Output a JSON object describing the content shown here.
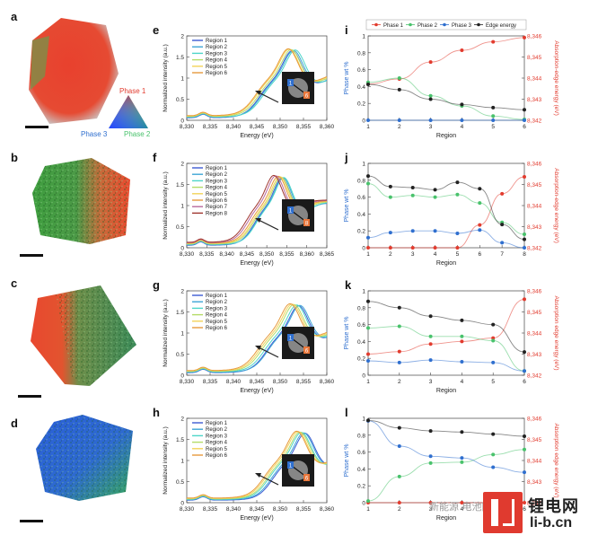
{
  "colors": {
    "phase1": "#e23b2e",
    "phase2": "#49c26c",
    "phase3": "#2f6fcf",
    "edge": "#222222",
    "spectra": [
      "#3d5bd3",
      "#3ea6d6",
      "#4ed6c9",
      "#b5dc68",
      "#f3d35a",
      "#e79a3d",
      "#b86a9d",
      "#a0362f"
    ]
  },
  "panels": {
    "a": {
      "letter": "a",
      "legend": {
        "phase1": "Phase 1",
        "phase2": "Phase 2",
        "phase3": "Phase 3"
      }
    },
    "b": {
      "letter": "b"
    },
    "c": {
      "letter": "c"
    },
    "d": {
      "letter": "d"
    }
  },
  "chart_data": [
    {
      "panel": "e",
      "type": "line",
      "xlabel": "Energy (eV)",
      "ylabel": "Normalized intensity (a.u.)",
      "xlim": [
        8330,
        8360
      ],
      "ylim": [
        0,
        2
      ],
      "xticks": [
        "8,330",
        "8,335",
        "8,340",
        "8,345",
        "8,350",
        "8,355",
        "8,360"
      ],
      "yticks": [
        "0",
        "0.5",
        "1",
        "1.5",
        "2"
      ],
      "legend": [
        "Region 1",
        "Region 2",
        "Region 3",
        "Region 4",
        "Region 5",
        "Region 6"
      ],
      "peaks": [
        8352.6,
        8352.9,
        8353.3,
        8352.4,
        8352.0,
        8351.8
      ],
      "inset_labels": [
        "1",
        "6"
      ],
      "legend_position": "top-left"
    },
    {
      "panel": "f",
      "type": "line",
      "xlabel": "Energy (eV)",
      "ylabel": "Normalized intensity (a.u.)",
      "xlim": [
        8330,
        8365
      ],
      "ylim": [
        0,
        2
      ],
      "xticks": [
        "8,330",
        "8,335",
        "8,340",
        "8,345",
        "8,350",
        "8,355",
        "8,360",
        "8,365"
      ],
      "yticks": [
        "0",
        "0.5",
        "1",
        "1.5",
        "2"
      ],
      "legend": [
        "Region 1",
        "Region 2",
        "Region 3",
        "Region 4",
        "Region 5",
        "Region 6",
        "Region 7",
        "Region 8"
      ],
      "peaks": [
        8353.8,
        8354.1,
        8354.3,
        8353.6,
        8353.3,
        8352.9,
        8352.3,
        8351.8
      ],
      "inset_labels": [
        "1",
        "8"
      ],
      "legend_position": "top-left"
    },
    {
      "panel": "g",
      "type": "line",
      "xlabel": "Energy (eV)",
      "ylabel": "Normalized intensity (a.u.)",
      "xlim": [
        8330,
        8360
      ],
      "ylim": [
        0,
        2
      ],
      "xticks": [
        "8,330",
        "8,335",
        "8,340",
        "8,345",
        "8,350",
        "8,355",
        "8,360"
      ],
      "yticks": [
        "0",
        "0.5",
        "1",
        "1.5",
        "2"
      ],
      "legend": [
        "Region 1",
        "Region 2",
        "Region 3",
        "Region 4",
        "Region 5",
        "Region 6"
      ],
      "peaks": [
        8354.0,
        8354.3,
        8353.6,
        8353.0,
        8352.6,
        8352.2
      ],
      "inset_labels": [
        "1",
        "6"
      ],
      "legend_position": "top-left"
    },
    {
      "panel": "h",
      "type": "line",
      "xlabel": "Energy (eV)",
      "ylabel": "Normalized intensity (a.u.)",
      "xlim": [
        8330,
        8360
      ],
      "ylim": [
        0,
        2
      ],
      "xticks": [
        "8,330",
        "8,335",
        "8,340",
        "8,345",
        "8,350",
        "8,355",
        "8,360"
      ],
      "yticks": [
        "0",
        "0.5",
        "1",
        "1.5",
        "2"
      ],
      "legend": [
        "Region 1",
        "Region 2",
        "Region 3",
        "Region 4",
        "Region 5",
        "Region 6"
      ],
      "peaks": [
        8355.4,
        8355.1,
        8354.6,
        8354.3,
        8353.9,
        8353.6
      ],
      "inset_labels": [
        "1",
        "6"
      ],
      "legend_position": "top-left"
    },
    {
      "panel": "i",
      "type": "line",
      "xlabel": "Region",
      "ylabel": "Phase wt %",
      "y2label": "Absorption-edge energy (eV)",
      "x": [
        1,
        2,
        3,
        4,
        5,
        6
      ],
      "ylim": [
        0,
        1
      ],
      "y2lim": [
        8342,
        8346
      ],
      "yticks": [
        "0",
        "0.2",
        "0.4",
        "0.6",
        "0.8",
        "1"
      ],
      "y2ticks": [
        "8,342",
        "8,343",
        "8,344",
        "8,345",
        "8,346"
      ],
      "legend": [
        "Phase 1",
        "Phase 2",
        "Phase 3",
        "Edge energy"
      ],
      "series": [
        {
          "name": "Phase 1",
          "axis": "left",
          "values": [
            0.43,
            0.49,
            0.69,
            0.83,
            0.93,
            0.98
          ]
        },
        {
          "name": "Phase 2",
          "axis": "left",
          "values": [
            0.45,
            0.5,
            0.29,
            0.17,
            0.05,
            0.01
          ]
        },
        {
          "name": "Phase 3",
          "axis": "left",
          "values": [
            0.0,
            0.0,
            0.0,
            0.0,
            0.0,
            0.0
          ]
        },
        {
          "name": "Edge energy",
          "axis": "right",
          "values": [
            8343.7,
            8343.45,
            8343.0,
            8342.75,
            8342.6,
            8342.5
          ]
        }
      ]
    },
    {
      "panel": "j",
      "type": "line",
      "xlabel": "Region",
      "ylabel": "Phase wt %",
      "y2label": "Absorption-edge energy (eV)",
      "x": [
        1,
        2,
        3,
        4,
        5,
        6,
        7,
        8
      ],
      "ylim": [
        0,
        1
      ],
      "y2lim": [
        8342,
        8346
      ],
      "yticks": [
        "0",
        "0.2",
        "0.4",
        "0.6",
        "0.8",
        "1"
      ],
      "y2ticks": [
        "8,342",
        "8,343",
        "8,344",
        "8,345",
        "8,346"
      ],
      "series": [
        {
          "name": "Phase 1",
          "axis": "left",
          "values": [
            0.0,
            0.0,
            0.0,
            0.0,
            0.0,
            0.27,
            0.64,
            0.84
          ]
        },
        {
          "name": "Phase 2",
          "axis": "left",
          "values": [
            0.76,
            0.6,
            0.62,
            0.6,
            0.63,
            0.53,
            0.3,
            0.16
          ]
        },
        {
          "name": "Phase 3",
          "axis": "left",
          "values": [
            0.12,
            0.18,
            0.2,
            0.2,
            0.17,
            0.21,
            0.06,
            0.0
          ]
        },
        {
          "name": "Edge energy",
          "axis": "right",
          "values": [
            8345.4,
            8344.9,
            8344.85,
            8344.75,
            8345.1,
            8344.8,
            8343.1,
            8342.4
          ]
        }
      ]
    },
    {
      "panel": "k",
      "type": "line",
      "xlabel": "Region",
      "ylabel": "Phase wt %",
      "y2label": "Absorption edge energy (eV)",
      "x": [
        1,
        2,
        3,
        4,
        5,
        6
      ],
      "ylim": [
        0,
        1
      ],
      "y2lim": [
        8342,
        8346
      ],
      "yticks": [
        "0",
        "0.2",
        "0.4",
        "0.6",
        "0.8",
        "1"
      ],
      "y2ticks": [
        "8,342",
        "8,343",
        "8,344",
        "8,345",
        "8,346"
      ],
      "series": [
        {
          "name": "Phase 1",
          "axis": "left",
          "values": [
            0.25,
            0.28,
            0.37,
            0.4,
            0.44,
            0.9
          ]
        },
        {
          "name": "Phase 2",
          "axis": "left",
          "values": [
            0.56,
            0.58,
            0.46,
            0.46,
            0.41,
            0.05
          ]
        },
        {
          "name": "Phase 3",
          "axis": "left",
          "values": [
            0.17,
            0.15,
            0.18,
            0.16,
            0.15,
            0.05
          ]
        },
        {
          "name": "Edge energy",
          "axis": "right",
          "values": [
            8345.5,
            8345.2,
            8344.8,
            8344.6,
            8344.4,
            8343.1
          ]
        }
      ]
    },
    {
      "panel": "l",
      "type": "line",
      "xlabel": "Region",
      "ylabel": "Phase wt %",
      "y2label": "Absorption edge energy (eV)",
      "x": [
        1,
        2,
        3,
        4,
        5,
        6
      ],
      "ylim": [
        0,
        1
      ],
      "y2lim": [
        8342,
        8346
      ],
      "yticks": [
        "0",
        "0.2",
        "0.4",
        "0.6",
        "0.8",
        "1"
      ],
      "y2ticks": [
        "8,342",
        "8,343",
        "8,344",
        "8,345",
        "8,346"
      ],
      "series": [
        {
          "name": "Phase 1",
          "axis": "left",
          "values": [
            0.0,
            0.0,
            0.0,
            0.0,
            0.0,
            0.0
          ]
        },
        {
          "name": "Phase 2",
          "axis": "left",
          "values": [
            0.02,
            0.31,
            0.47,
            0.48,
            0.57,
            0.63
          ]
        },
        {
          "name": "Phase 3",
          "axis": "left",
          "values": [
            0.97,
            0.67,
            0.55,
            0.53,
            0.42,
            0.36
          ]
        },
        {
          "name": "Edge energy",
          "axis": "right",
          "values": [
            8345.9,
            8345.55,
            8345.4,
            8345.35,
            8345.25,
            8345.15
          ]
        }
      ]
    }
  ],
  "watermark": {
    "cn": "锂电网",
    "url": "li-b.cn",
    "faint": "新能源 电池网"
  }
}
